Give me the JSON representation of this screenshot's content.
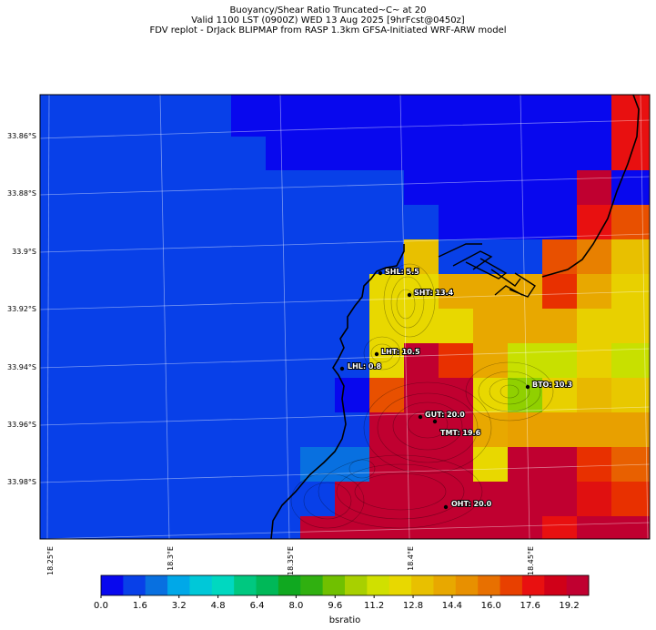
{
  "header": {
    "line1": "Buoyancy/Shear Ratio Truncated~C~    at 20",
    "line2": "Valid 1100 LST (0900Z) WED 13 Aug 2025 [9hrFcst@0450z]",
    "line3": "FDV replot - DrJack BLIPMAP from RASP 1.3km GFSA-Initiated WRF-ARW model"
  },
  "axes": {
    "lat_labels": [
      "33.86°S",
      "33.88°S",
      "33.9°S",
      "33.92°S",
      "33.94°S",
      "33.96°S",
      "33.98°S"
    ],
    "lon_labels": [
      "18.25°E",
      "18.3°E",
      "18.35°E",
      "18.4°E",
      "18.45°E"
    ]
  },
  "sites": [
    {
      "label": "SHL: 5.5",
      "value": 5.5
    },
    {
      "label": "SHT: 13.4",
      "value": 13.4
    },
    {
      "label": "LHT: 10.5",
      "value": 10.5
    },
    {
      "label": "LHL: 0.8",
      "value": 0.8
    },
    {
      "label": "BTO: 10.3",
      "value": 10.3
    },
    {
      "label": "GUT: 20.0",
      "value": 20.0
    },
    {
      "label": "TMT: 19.6",
      "value": 19.6
    },
    {
      "label": "OHT: 20.0",
      "value": 20.0
    }
  ],
  "colorbar": {
    "label": "bsratio",
    "ticks": [
      "0.0",
      "1.6",
      "3.2",
      "4.8",
      "6.4",
      "8.0",
      "9.6",
      "11.2",
      "12.8",
      "14.4",
      "16.0",
      "17.6",
      "19.2"
    ],
    "min": 0.0,
    "max": 20.0,
    "colors": [
      "#0808ee",
      "#0840e8",
      "#0870e0",
      "#00a8e8",
      "#00c8d8",
      "#00d8c0",
      "#00c880",
      "#00b858",
      "#10a820",
      "#30b010",
      "#70c000",
      "#a8d000",
      "#d0e000",
      "#e8d800",
      "#e8c000",
      "#e8a800",
      "#e89000",
      "#e87000",
      "#e84000",
      "#e81010",
      "#d00018",
      "#c00030"
    ]
  }
}
